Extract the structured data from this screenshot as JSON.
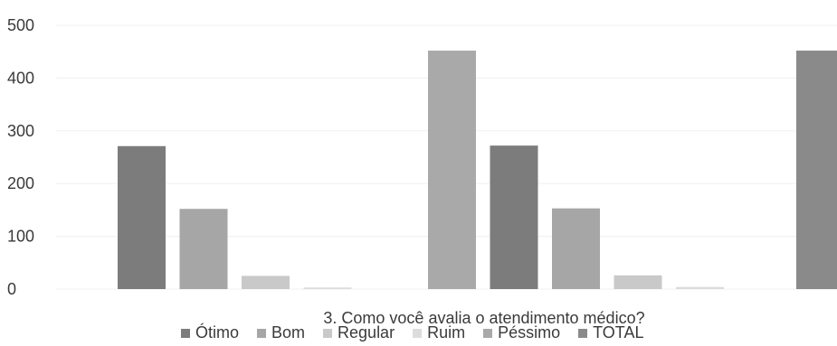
{
  "chart_data": {
    "type": "bar",
    "title": "",
    "xlabel": "3. Como você avalia o atendimento médico?",
    "ylabel": "",
    "ylim": [
      0,
      500
    ],
    "yticks": [
      0,
      100,
      200,
      300,
      400,
      500
    ],
    "grid": true,
    "legend_position": "bottom",
    "groups": [
      "",
      "",
      ""
    ],
    "series": [
      {
        "name": "Ótimo",
        "color": "#7c7c7c",
        "values": [
          271,
          272,
          null
        ]
      },
      {
        "name": "Bom",
        "color": "#a6a6a6",
        "values": [
          152,
          153,
          null
        ]
      },
      {
        "name": "Regular",
        "color": "#c9c9c9",
        "values": [
          25,
          26,
          null
        ]
      },
      {
        "name": "Ruim",
        "color": "#dcdcdc",
        "values": [
          3,
          4,
          null
        ]
      },
      {
        "name": "Péssimo",
        "color": "#a9a9a9",
        "values": [
          null,
          452,
          null
        ]
      },
      {
        "name": "TOTAL",
        "color": "#8a8a8a",
        "values": [
          null,
          null,
          452
        ]
      }
    ]
  }
}
